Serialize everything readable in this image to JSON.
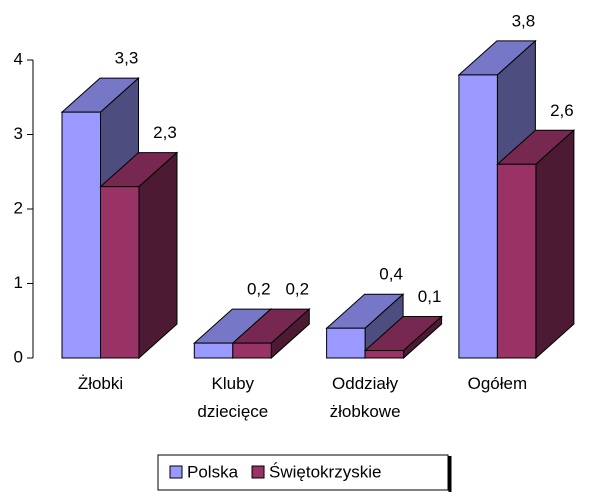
{
  "chart_data": {
    "type": "bar3d",
    "categories": [
      "Żłobki",
      "Kluby dziecięce",
      "Oddziały żłobkowe",
      "Ogółem"
    ],
    "series": [
      {
        "name": "Polska",
        "color": "#9999ff",
        "values": [
          3.3,
          0.2,
          0.4,
          3.8
        ],
        "value_labels": [
          "3,3",
          "0,2",
          "0,4",
          "3,8"
        ]
      },
      {
        "name": "Świętokrzyskie",
        "color": "#993366",
        "values": [
          2.3,
          0.2,
          0.1,
          2.6
        ],
        "value_labels": [
          "2,3",
          "0,2",
          "0,1",
          "2,6"
        ]
      }
    ],
    "ylim": [
      0,
      4
    ],
    "yticks": [
      0,
      1,
      2,
      3,
      4
    ],
    "legend": "bottom"
  }
}
